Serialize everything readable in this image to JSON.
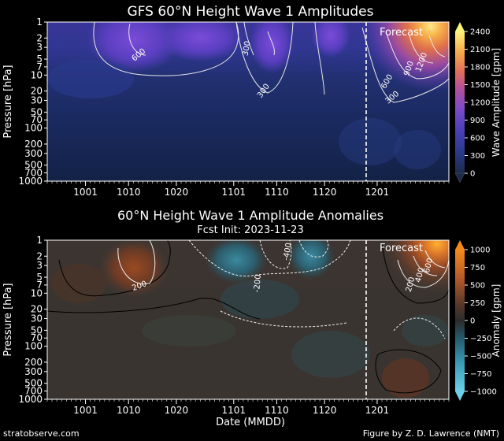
{
  "chart_data": [
    {
      "type": "heatmap",
      "title": "GFS 60°N Height Wave 1 Amplitudes",
      "ylabel": "Pressure [hPa]",
      "colorbar_label": "Wave Amplitude [gpm]",
      "colorbar_ticks": [
        "0",
        "300",
        "600",
        "900",
        "1200",
        "1500",
        "1800",
        "2100",
        "2400"
      ],
      "colorbar_range": [
        0,
        2400
      ],
      "x_ticks": [
        "1001",
        "1010",
        "1020",
        "1101",
        "1110",
        "1120",
        "1201"
      ],
      "y_ticks": [
        "1",
        "2",
        "3",
        "5",
        "7",
        "10",
        "20",
        "30",
        "50",
        "70",
        "100",
        "200",
        "300",
        "500",
        "700",
        "1000"
      ],
      "ylim_hpa": [
        1000,
        1
      ],
      "forecast_label": "Forecast",
      "forecast_init": "1123",
      "contour_labels": [
        "600",
        "300",
        "300",
        "600",
        "300",
        "900",
        "1200"
      ]
    },
    {
      "type": "heatmap",
      "title": "60°N Height Wave 1 Amplitude Anomalies",
      "subtitle": "Fcst Init: 2023-11-23",
      "xlabel": "Date (MMDD)",
      "ylabel": "Pressure [hPa]",
      "colorbar_label": "Anomaly [gpm]",
      "colorbar_ticks": [
        "1000",
        "750",
        "500",
        "250",
        "0",
        "−250",
        "−500",
        "−750",
        "−1000"
      ],
      "colorbar_range": [
        -1000,
        1000
      ],
      "x_ticks": [
        "1001",
        "1010",
        "1020",
        "1101",
        "1110",
        "1120",
        "1201"
      ],
      "y_ticks": [
        "1",
        "2",
        "3",
        "5",
        "7",
        "10",
        "20",
        "30",
        "50",
        "70",
        "100",
        "200",
        "300",
        "500",
        "700",
        "1000"
      ],
      "ylim_hpa": [
        1000,
        1
      ],
      "forecast_label": "Forecast",
      "forecast_init": "1123",
      "contour_labels": [
        "200",
        "-400",
        "-200",
        "200",
        "400",
        "600"
      ]
    }
  ],
  "footer": {
    "left": "stratobserve.com",
    "right": "Figure by Z. D. Lawrence (NMT)"
  }
}
